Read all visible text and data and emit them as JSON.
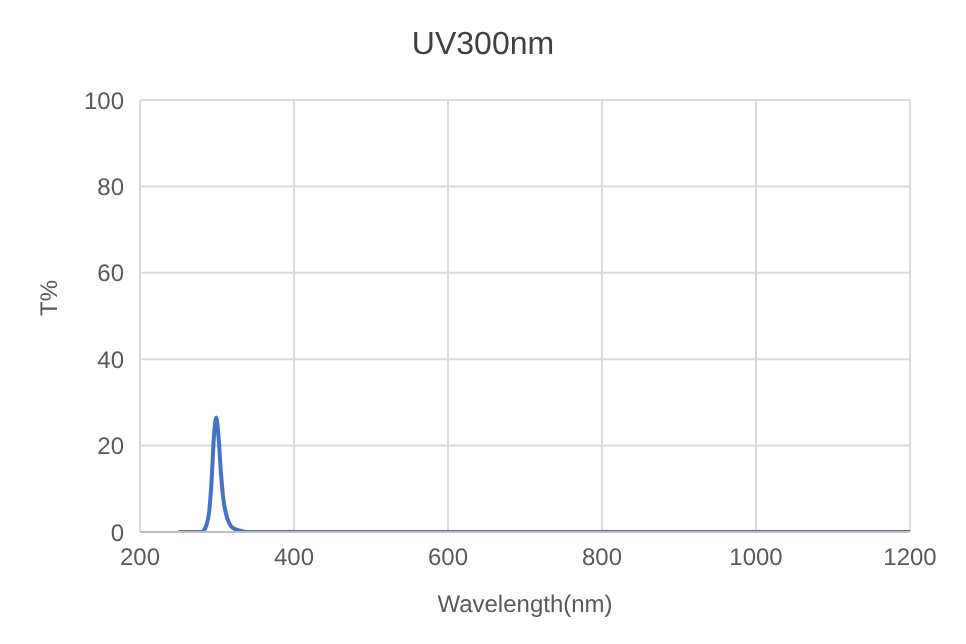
{
  "chart_data": {
    "type": "line",
    "title": "UV300nm",
    "xlabel": "Wavelength(nm)",
    "ylabel": "T%",
    "x": [
      250,
      280,
      285,
      290,
      293,
      296,
      299,
      302,
      305,
      308,
      312,
      316,
      320,
      330,
      340,
      400,
      600,
      800,
      1000,
      1200
    ],
    "series": [
      {
        "color": "#4472c4",
        "values": [
          0,
          0,
          1,
          5,
          12,
          22,
          26.5,
          22,
          14,
          8,
          4,
          2,
          1,
          0.3,
          0,
          0,
          0,
          0,
          0,
          0
        ]
      }
    ],
    "xlim": [
      200,
      1200
    ],
    "xticks": [
      200,
      400,
      600,
      800,
      1000,
      1200
    ],
    "ylim": [
      0,
      100
    ],
    "yticks": [
      0,
      20,
      40,
      60,
      80,
      100
    ],
    "grid": true,
    "marker": "none",
    "line_style": "solid"
  }
}
